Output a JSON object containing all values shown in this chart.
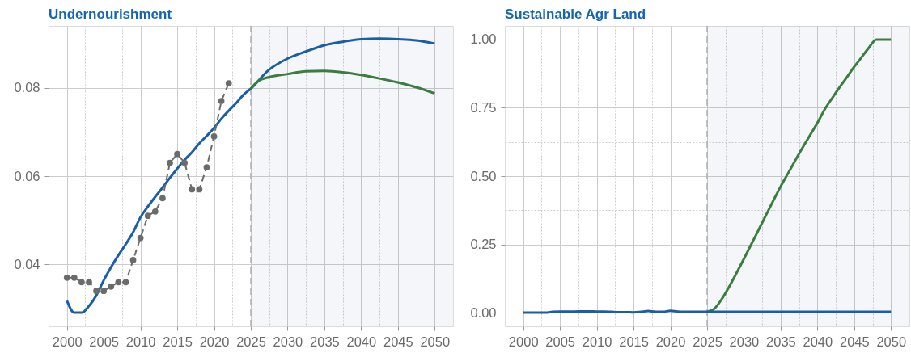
{
  "chart_data": [
    {
      "type": "line",
      "title": "Undernourishment",
      "xlim": [
        1997.5,
        2052.5
      ],
      "ylim": [
        0.026,
        0.094
      ],
      "xticks": [
        2000,
        {
          "value": 2002.5,
          "label": null
        },
        2005,
        {
          "value": 2007.5,
          "label": null
        },
        2010,
        {
          "value": 2012.5,
          "label": null
        },
        2015,
        {
          "value": 2017.5,
          "label": null
        },
        2020,
        {
          "value": 2022.5,
          "label": null
        },
        2025,
        {
          "value": 2027.5,
          "label": null
        },
        2030,
        {
          "value": 2032.5,
          "label": null
        },
        2035,
        {
          "value": 2037.5,
          "label": null
        },
        2040,
        {
          "value": 2042.5,
          "label": null
        },
        2045,
        {
          "value": 2047.5,
          "label": null
        },
        2050
      ],
      "yticks": [
        {
          "value": 0.03,
          "label": null
        },
        0.04,
        {
          "value": 0.05,
          "label": null
        },
        0.06,
        {
          "value": 0.07,
          "label": null
        },
        0.08,
        {
          "value": 0.09,
          "label": null
        }
      ],
      "grid": true,
      "bands": [
        {
          "axis": "x",
          "from": 2025,
          "to": 2052.5,
          "color": "#f4f6f9"
        }
      ],
      "ref_lines": [
        {
          "axis": "x",
          "value": 2025,
          "color": "#b0b0b0",
          "line_style": "dashed"
        }
      ],
      "series": [
        {
          "color": "#1a5ea8",
          "line_style": "solid",
          "marker": "none",
          "x": [
            2000,
            2001,
            2002,
            2003,
            2004,
            2005,
            2006,
            2007,
            2008,
            2009,
            2010,
            2011,
            2012,
            2013,
            2014,
            2015,
            2016,
            2017,
            2018,
            2019,
            2020,
            2021,
            2022,
            2023,
            2024,
            2025,
            2027.5,
            2030,
            2032.5,
            2035,
            2037.5,
            2040,
            2042.5,
            2045,
            2047.5,
            2050
          ],
          "values": [
            0.0318,
            0.0291,
            0.0291,
            0.0306,
            0.033,
            0.0364,
            0.0394,
            0.0421,
            0.0446,
            0.0473,
            0.0507,
            0.0531,
            0.0553,
            0.0574,
            0.0596,
            0.0617,
            0.0637,
            0.0654,
            0.0674,
            0.0691,
            0.0709,
            0.073,
            0.0748,
            0.0765,
            0.0784,
            0.0798,
            0.0841,
            0.0866,
            0.0882,
            0.0896,
            0.0904,
            0.091,
            0.0911,
            0.091,
            0.0907,
            0.09
          ]
        },
        {
          "color": "#3b7d3f",
          "line_style": "solid",
          "marker": "none",
          "x": [
            2025,
            2026,
            2027.5,
            2030,
            2032.5,
            2035,
            2037.5,
            2040,
            2042.5,
            2045,
            2047.5,
            2050
          ],
          "values": [
            0.0798,
            0.0815,
            0.0824,
            0.0831,
            0.0837,
            0.0838,
            0.0835,
            0.0829,
            0.0821,
            0.0812,
            0.0801,
            0.0787
          ]
        },
        {
          "color": "#6b6b6b",
          "line_style": "dashed",
          "marker": "circle",
          "x": [
            2000,
            2001,
            2002,
            2003,
            2004,
            2005,
            2006,
            2007,
            2008,
            2009,
            2010,
            2011,
            2012,
            2013,
            2014,
            2015,
            2016,
            2017,
            2018,
            2019,
            2020,
            2021,
            2022
          ],
          "values": [
            0.037,
            0.037,
            0.036,
            0.036,
            0.034,
            0.034,
            0.035,
            0.036,
            0.036,
            0.041,
            0.046,
            0.051,
            0.052,
            0.055,
            0.063,
            0.065,
            0.063,
            0.057,
            0.057,
            0.062,
            0.069,
            0.077,
            0.081
          ]
        }
      ]
    },
    {
      "type": "line",
      "title": "Sustainable Agr Land",
      "xlim": [
        1997.5,
        2052.5
      ],
      "ylim": [
        -0.05,
        1.05
      ],
      "xticks": [
        2000,
        {
          "value": 2002.5,
          "label": null
        },
        2005,
        {
          "value": 2007.5,
          "label": null
        },
        2010,
        {
          "value": 2012.5,
          "label": null
        },
        2015,
        {
          "value": 2017.5,
          "label": null
        },
        2020,
        {
          "value": 2022.5,
          "label": null
        },
        2025,
        {
          "value": 2027.5,
          "label": null
        },
        2030,
        {
          "value": 2032.5,
          "label": null
        },
        2035,
        {
          "value": 2037.5,
          "label": null
        },
        2040,
        {
          "value": 2042.5,
          "label": null
        },
        2045,
        {
          "value": 2047.5,
          "label": null
        },
        2050
      ],
      "yticks": [
        {
          "value": 0,
          "label": "0.00"
        },
        {
          "value": 0.125,
          "label": null
        },
        {
          "value": 0.25,
          "label": "0.25"
        },
        {
          "value": 0.375,
          "label": null
        },
        {
          "value": 0.5,
          "label": "0.50"
        },
        {
          "value": 0.625,
          "label": null
        },
        {
          "value": 0.75,
          "label": "0.75"
        },
        {
          "value": 0.875,
          "label": null
        },
        {
          "value": 1,
          "label": "1.00"
        }
      ],
      "grid": true,
      "bands": [
        {
          "axis": "x",
          "from": 2025,
          "to": 2052.5,
          "color": "#f4f6f9"
        }
      ],
      "ref_lines": [
        {
          "axis": "x",
          "value": 2025,
          "color": "#b0b0b0",
          "line_style": "dashed"
        }
      ],
      "series": [
        {
          "color": "#3b7d3f",
          "line_style": "solid",
          "marker": "none",
          "x": [
            2025,
            2026,
            2027,
            2028,
            2029,
            2030,
            2031,
            2032,
            2033,
            2034,
            2035,
            2036,
            2037,
            2038,
            2039,
            2040,
            2041,
            2042,
            2043,
            2044,
            2045,
            2046,
            2047,
            2048,
            2049,
            2050
          ],
          "values": [
            0.003,
            0.015,
            0.05,
            0.095,
            0.145,
            0.197,
            0.25,
            0.303,
            0.357,
            0.41,
            0.462,
            0.51,
            0.558,
            0.605,
            0.65,
            0.695,
            0.745,
            0.785,
            0.825,
            0.862,
            0.9,
            0.935,
            0.97,
            1.0,
            1.0,
            1.0
          ]
        },
        {
          "color": "#1a5ea8",
          "line_style": "solid",
          "marker": "none",
          "x": [
            2000,
            2001,
            2002,
            2003,
            2004,
            2005,
            2006,
            2007,
            2008,
            2009,
            2010,
            2011,
            2012,
            2013,
            2014,
            2015,
            2016,
            2017,
            2018,
            2019,
            2020,
            2021,
            2022,
            2023,
            2024,
            2025,
            2050
          ],
          "values": [
            0,
            0,
            0,
            0,
            0.003,
            0.004,
            0.004,
            0.004,
            0.005,
            0.005,
            0.004,
            0.004,
            0.003,
            0.002,
            0.002,
            0.001,
            0.003,
            0.006,
            0.003,
            0.003,
            0.007,
            0.004,
            0.003,
            0.003,
            0.003,
            0.003,
            0.003
          ]
        }
      ]
    }
  ]
}
